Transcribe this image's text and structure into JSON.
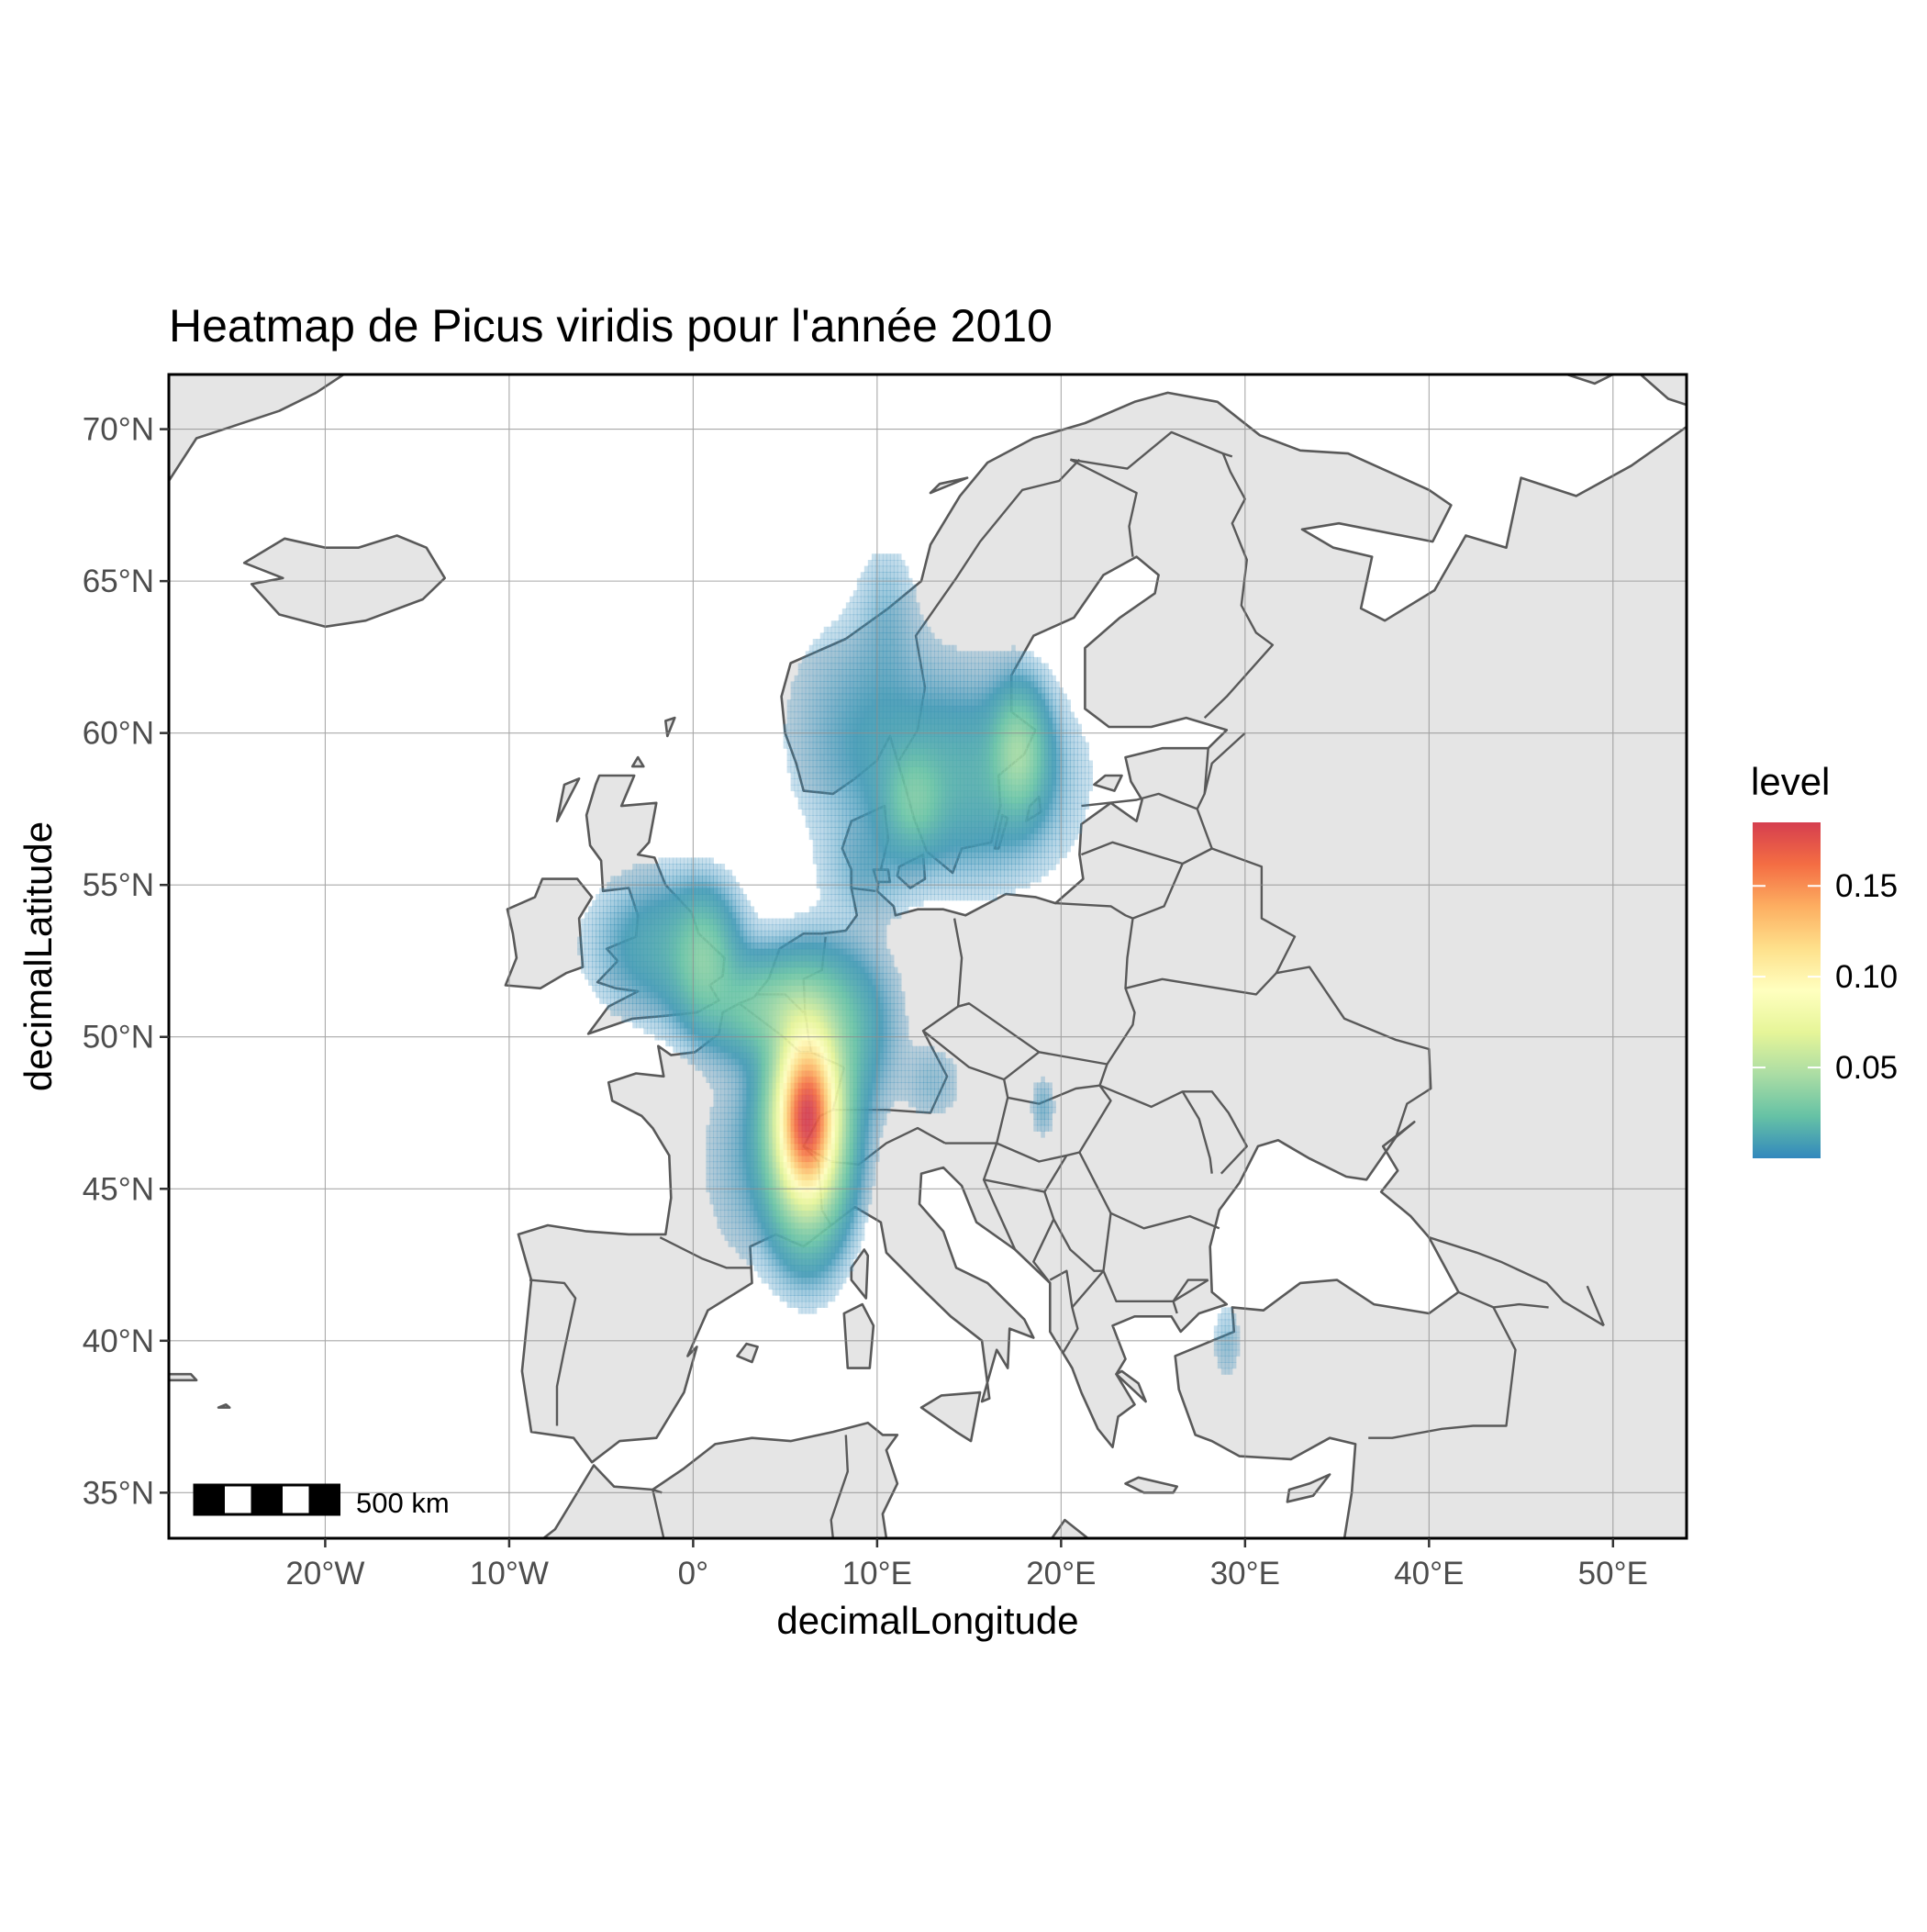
{
  "chart_data": {
    "type": "heatmap",
    "title": "Heatmap de Picus viridis pour l'année 2010",
    "xlabel": "decimalLongitude",
    "ylabel": "decimalLatitude",
    "xlim": [
      -28.5,
      54
    ],
    "ylim": [
      33.5,
      71.8
    ],
    "x_ticks": [
      {
        "value": -20,
        "label": "20°W"
      },
      {
        "value": -10,
        "label": "10°W"
      },
      {
        "value": 0,
        "label": "0°"
      },
      {
        "value": 10,
        "label": "10°E"
      },
      {
        "value": 20,
        "label": "20°E"
      },
      {
        "value": 30,
        "label": "30°E"
      },
      {
        "value": 40,
        "label": "40°E"
      },
      {
        "value": 50,
        "label": "50°E"
      }
    ],
    "y_ticks": [
      {
        "value": 35,
        "label": "35°N"
      },
      {
        "value": 40,
        "label": "40°N"
      },
      {
        "value": 45,
        "label": "45°N"
      },
      {
        "value": 50,
        "label": "50°N"
      },
      {
        "value": 55,
        "label": "55°N"
      },
      {
        "value": 60,
        "label": "60°N"
      },
      {
        "value": 65,
        "label": "65°N"
      },
      {
        "value": 70,
        "label": "70°N"
      }
    ],
    "grid": true,
    "legend": {
      "title": "level",
      "placement": "right",
      "min": 0,
      "max": 0.185,
      "ticks": [
        {
          "value": 0.05,
          "label": "0.05"
        },
        {
          "value": 0.1,
          "label": "0.10"
        },
        {
          "value": 0.15,
          "label": "0.15"
        }
      ],
      "colors": [
        "#3288bd",
        "#66c2a5",
        "#abdda4",
        "#e6f598",
        "#ffffbf",
        "#fee08b",
        "#fdae61",
        "#f46d43",
        "#d53e4f"
      ]
    },
    "density_hotspots": [
      {
        "lon": 6.2,
        "lat": 47.3,
        "peak": 0.185,
        "sx": 1.2,
        "sy": 2.0
      },
      {
        "lon": 4.2,
        "lat": 51.0,
        "peak": 0.03,
        "sx": 2.2,
        "sy": 1.0
      },
      {
        "lon": 0.6,
        "lat": 52.6,
        "peak": 0.025,
        "sx": 1.0,
        "sy": 1.2
      },
      {
        "lon": -1.5,
        "lat": 53.0,
        "peak": 0.012,
        "sx": 2.2,
        "sy": 1.3
      },
      {
        "lon": 8.2,
        "lat": 50.2,
        "peak": 0.015,
        "sx": 1.5,
        "sy": 1.6
      },
      {
        "lon": 17.7,
        "lat": 59.4,
        "peak": 0.035,
        "sx": 0.9,
        "sy": 1.2
      },
      {
        "lon": 15.0,
        "lat": 58.5,
        "peak": 0.014,
        "sx": 3.0,
        "sy": 1.8
      },
      {
        "lon": 12.0,
        "lat": 57.8,
        "peak": 0.02,
        "sx": 1.0,
        "sy": 1.0
      },
      {
        "lon": 9.5,
        "lat": 60.0,
        "peak": 0.006,
        "sx": 2.5,
        "sy": 2.2
      },
      {
        "lon": 10.5,
        "lat": 64.0,
        "peak": 0.003,
        "sx": 1.0,
        "sy": 1.5
      },
      {
        "lon": 9.5,
        "lat": 55.5,
        "peak": 0.004,
        "sx": 1.5,
        "sy": 1.0
      },
      {
        "lon": 3.0,
        "lat": 46.0,
        "peak": 0.004,
        "sx": 1.5,
        "sy": 2.0
      },
      {
        "lon": 19.0,
        "lat": 47.7,
        "peak": 0.004,
        "sx": 0.4,
        "sy": 0.6
      },
      {
        "lon": 29.0,
        "lat": 40.0,
        "peak": 0.003,
        "sx": 0.5,
        "sy": 0.8
      },
      {
        "lon": 13.0,
        "lat": 48.5,
        "peak": 0.003,
        "sx": 1.0,
        "sy": 0.8
      }
    ],
    "scale_bar": {
      "label": "500 km"
    }
  }
}
